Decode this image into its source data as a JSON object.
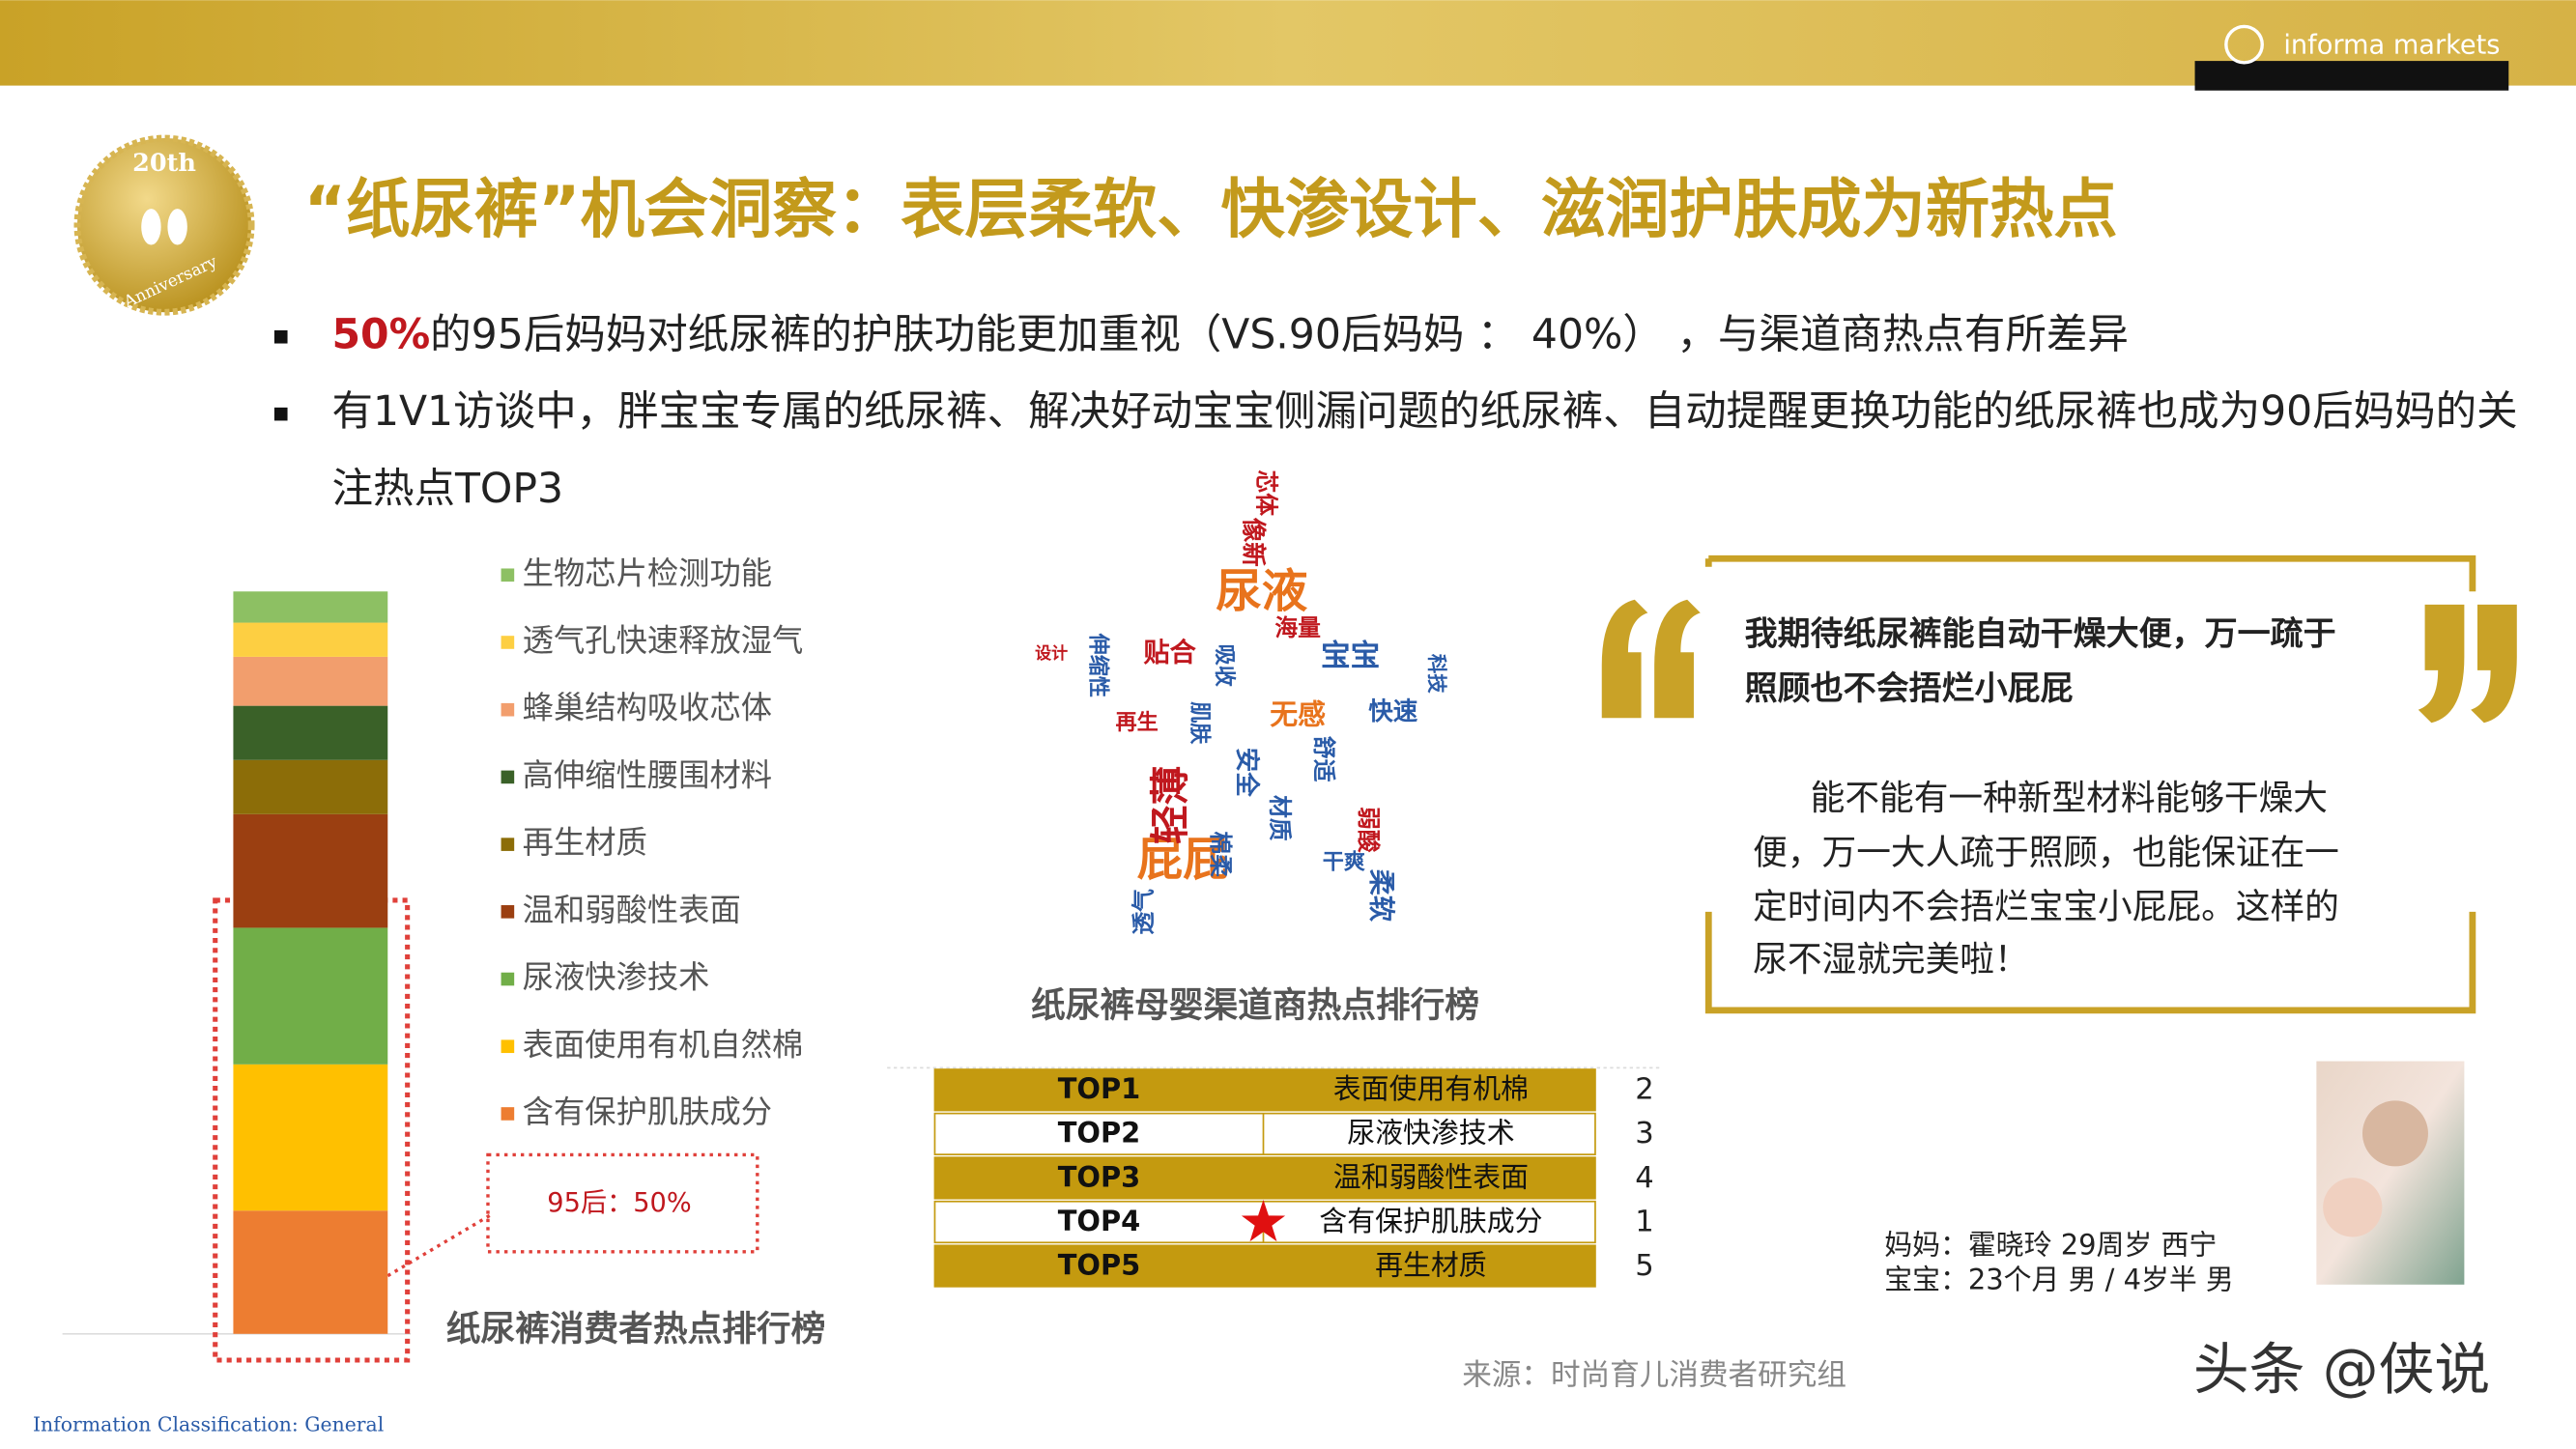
{
  "header": {
    "logo": "informa markets",
    "badge_year": "20th",
    "badge_text": "Anniversary",
    "title": "“纸尿裤”机会洞察：表层柔软、快渗设计、滋润护肤成为新热点"
  },
  "bullets": [
    {
      "highlight": "50%",
      "text": "的95后妈妈对纸尿裤的护肤功能更加重视（VS.90后妈妈 ： 40%） ，与渠道商热点有所差异"
    },
    {
      "lines": [
        "有1V1访谈中，胖宝宝专属的纸尿裤、解决好动宝宝侧漏问题的纸尿裤、自动提醒更换功能的纸尿裤也成为90后妈妈的关",
        "注热点TOP3"
      ]
    }
  ],
  "chart_data": {
    "type": "stacked-bar",
    "title": "纸尿裤消费者热点排行榜",
    "annotation": "95后：50%",
    "series": [
      {
        "name": "生物芯片检测功能",
        "color": "#8dc063",
        "values": [
          4.2
        ]
      },
      {
        "name": "透气孔快速释放湿气",
        "color": "#fdcf42",
        "values": [
          4.6
        ]
      },
      {
        "name": "蜂巢结构吸收芯体",
        "color": "#f29e6d",
        "values": [
          6.6
        ]
      },
      {
        "name": "高伸缩性腰围材料",
        "color": "#3a6128",
        "values": [
          7.3
        ]
      },
      {
        "name": "再生材质",
        "color": "#8c6d08",
        "values": [
          7.3
        ]
      },
      {
        "name": "温和弱酸性表面",
        "color": "#9b3f11",
        "values": [
          15.3
        ]
      },
      {
        "name": "尿液快渗技术",
        "color": "#71ae48",
        "values": [
          18.4
        ]
      },
      {
        "name": "表面使用有机自然棉",
        "color": "#ffc000",
        "values": [
          19.7
        ]
      },
      {
        "name": "含有保护肌肤成分",
        "color": "#ed7d31",
        "values": [
          16.6
        ]
      }
    ]
  },
  "word_cloud": {
    "title": "纸尿裤母婴渠道商热点排行榜",
    "words": [
      "尿液",
      "屁屁",
      "轻薄",
      "贴合",
      "芯体",
      "像新",
      "海量",
      "无感",
      "快速",
      "宝宝",
      "设计",
      "舒适",
      "吸收",
      "弱酸",
      "柔软",
      "透气",
      "干爽",
      "科技",
      "安全",
      "棉柔",
      "伸缩性",
      "再生",
      "材质",
      "肌肤"
    ]
  },
  "table": {
    "rows": [
      [
        "TOP1",
        "表面使用有机棉",
        "2"
      ],
      [
        "TOP2",
        "尿液快渗技术",
        "3"
      ],
      [
        "TOP3",
        "温和弱酸性表面",
        "4"
      ],
      [
        "TOP4",
        "含有保护肌肤成分",
        "1"
      ],
      [
        "TOP5",
        "再生材质",
        "5"
      ]
    ]
  },
  "quote": {
    "headline": [
      "我期待纸尿裤能自动干燥大便，万一疏于",
      "照顾也不会捂烂小屁屁"
    ],
    "body": [
      "能不能有一种新型材料能够干燥大",
      "便，万一大人疏于照顾，也能保证在一",
      "定时间内不会捂烂宝宝小屁屁。这样的",
      "尿不湿就完美啦！"
    ]
  },
  "profile": [
    "妈妈：霍晓玲 29周岁  西宁",
    "宝宝：23个月  男  /  4岁半 男"
  ],
  "source": "来源：时尚育儿消费者研究组",
  "footer": "Information Classification: General",
  "watermark": "头条 @侠说"
}
